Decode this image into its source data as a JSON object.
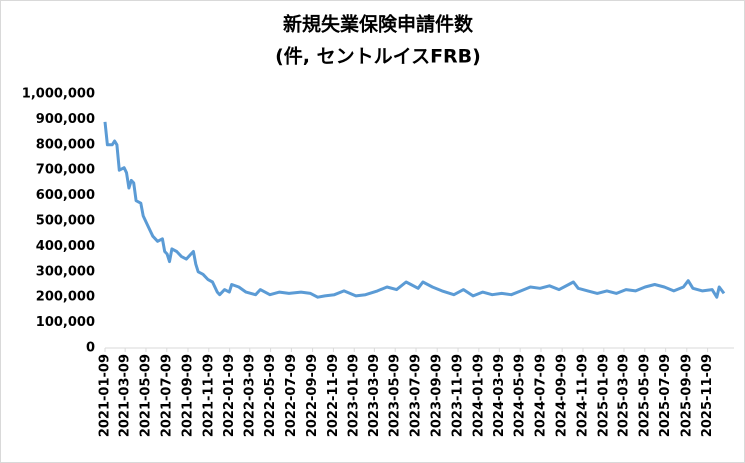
{
  "chart_data": {
    "type": "line",
    "title": [
      "新規失業保険申請件数",
      "(件, セントルイスFRB)"
    ],
    "x": [
      "2021-01-09",
      "2021-01-16",
      "2021-01-30",
      "2021-02-06",
      "2021-02-13",
      "2021-02-20",
      "2021-03-06",
      "2021-03-13",
      "2021-03-20",
      "2021-03-27",
      "2021-04-03",
      "2021-04-10",
      "2021-04-24",
      "2021-05-01",
      "2021-05-15",
      "2021-05-29",
      "2021-06-12",
      "2021-06-26",
      "2021-07-03",
      "2021-07-10",
      "2021-07-17",
      "2021-07-24",
      "2021-08-07",
      "2021-08-21",
      "2021-09-04",
      "2021-09-18",
      "2021-09-25",
      "2021-10-02",
      "2021-10-09",
      "2021-10-23",
      "2021-11-06",
      "2021-11-20",
      "2021-12-04",
      "2021-12-11",
      "2021-12-25",
      "2022-01-08",
      "2022-01-15",
      "2022-02-05",
      "2022-02-26",
      "2022-03-26",
      "2022-04-09",
      "2022-05-07",
      "2022-06-04",
      "2022-07-02",
      "2022-08-06",
      "2022-09-03",
      "2022-09-24",
      "2022-10-15",
      "2022-11-12",
      "2022-12-10",
      "2023-01-14",
      "2023-02-11",
      "2023-03-18",
      "2023-04-15",
      "2023-05-13",
      "2023-06-10",
      "2023-06-24",
      "2023-07-15",
      "2023-07-29",
      "2023-08-26",
      "2023-09-23",
      "2023-10-28",
      "2023-11-25",
      "2023-12-23",
      "2024-01-20",
      "2024-02-17",
      "2024-03-16",
      "2024-04-13",
      "2024-05-11",
      "2024-06-08",
      "2024-07-06",
      "2024-08-03",
      "2024-08-31",
      "2024-09-28",
      "2024-10-12",
      "2024-10-26",
      "2024-11-23",
      "2024-12-21",
      "2025-01-18",
      "2025-02-15",
      "2025-03-15",
      "2025-04-12",
      "2025-05-10",
      "2025-06-07",
      "2025-07-05",
      "2025-08-02",
      "2025-08-30",
      "2025-09-13",
      "2025-09-27",
      "2025-10-25",
      "2025-11-22",
      "2025-12-06",
      "2025-12-13",
      "2025-12-27"
    ],
    "series": [
      {
        "color": "#5b9bd5",
        "values": [
          890000,
          800000,
          800000,
          815000,
          800000,
          700000,
          710000,
          690000,
          630000,
          660000,
          650000,
          580000,
          570000,
          520000,
          480000,
          440000,
          420000,
          430000,
          380000,
          370000,
          340000,
          390000,
          380000,
          360000,
          350000,
          370000,
          380000,
          330000,
          300000,
          290000,
          270000,
          260000,
          220000,
          210000,
          230000,
          220000,
          250000,
          240000,
          220000,
          210000,
          230000,
          210000,
          220000,
          215000,
          220000,
          215000,
          200000,
          205000,
          210000,
          225000,
          205000,
          210000,
          225000,
          240000,
          230000,
          260000,
          250000,
          235000,
          260000,
          240000,
          225000,
          210000,
          230000,
          205000,
          220000,
          210000,
          215000,
          210000,
          225000,
          240000,
          235000,
          245000,
          230000,
          250000,
          260000,
          235000,
          225000,
          215000,
          225000,
          215000,
          230000,
          225000,
          240000,
          250000,
          240000,
          225000,
          240000,
          265000,
          235000,
          225000,
          230000,
          200000,
          240000,
          215000
        ]
      }
    ],
    "xlim": [
      "2021-01-09",
      "2025-12-27"
    ],
    "xticks": [
      "2021-01-09",
      "2021-03-09",
      "2021-05-09",
      "2021-07-09",
      "2021-09-09",
      "2021-11-09",
      "2022-01-09",
      "2022-03-09",
      "2022-05-09",
      "2022-07-09",
      "2022-09-09",
      "2022-11-09",
      "2023-01-09",
      "2023-03-09",
      "2023-05-09",
      "2023-07-09",
      "2023-09-09",
      "2023-11-09",
      "2024-01-09",
      "2024-03-09",
      "2024-05-09",
      "2024-07-09",
      "2024-09-09",
      "2024-11-09",
      "2025-01-09",
      "2025-03-09",
      "2025-05-09",
      "2025-07-09",
      "2025-09-09",
      "2025-11-09"
    ],
    "ylim": [
      0,
      1000000
    ],
    "yticks": [
      0,
      {
        "value": 100000,
        "label": "100,000"
      },
      {
        "value": 200000,
        "label": "200,000"
      },
      {
        "value": 300000,
        "label": "300,000"
      },
      {
        "value": 400000,
        "label": "400,000"
      },
      {
        "value": 500000,
        "label": "500,000"
      },
      {
        "value": 600000,
        "label": "600,000"
      },
      {
        "value": 700000,
        "label": "700,000"
      },
      {
        "value": 800000,
        "label": "800,000"
      },
      {
        "value": 900000,
        "label": "900,000"
      },
      {
        "value": 1000000,
        "label": "1,000,000"
      }
    ],
    "grid": false
  }
}
